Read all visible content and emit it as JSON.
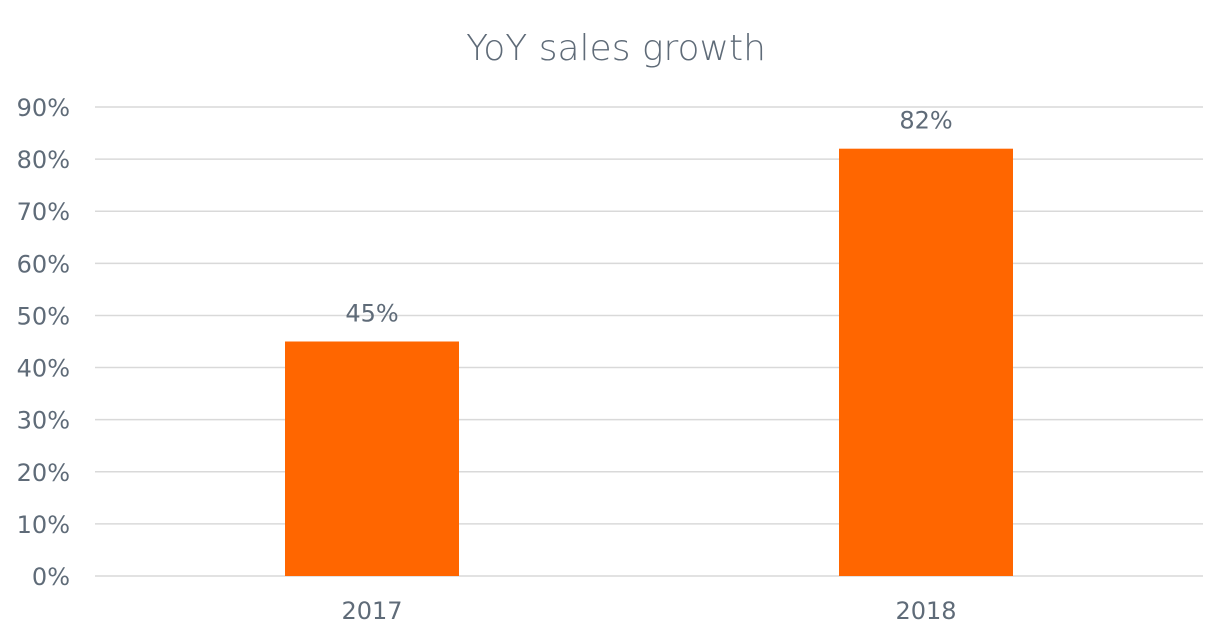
{
  "chart_data": {
    "type": "bar",
    "title": "YoY sales growth",
    "xlabel": "",
    "ylabel": "",
    "categories": [
      "2017",
      "2018"
    ],
    "series": [
      {
        "values": [
          45,
          82
        ],
        "data_labels": [
          "45%",
          "82%"
        ]
      }
    ],
    "ylim": [
      0,
      90
    ],
    "y_ticks": [
      0,
      10,
      20,
      30,
      40,
      50,
      60,
      70,
      80,
      90
    ],
    "y_tick_labels": [
      "0%",
      "10%",
      "20%",
      "30%",
      "40%",
      "50%",
      "60%",
      "70%",
      "80%",
      "90%"
    ],
    "grid": true,
    "legend": "none"
  },
  "colors": {
    "bar": "#ff6600",
    "text": "#5f6b78",
    "grid": "#d9d9d9",
    "background": "#ffffff"
  }
}
